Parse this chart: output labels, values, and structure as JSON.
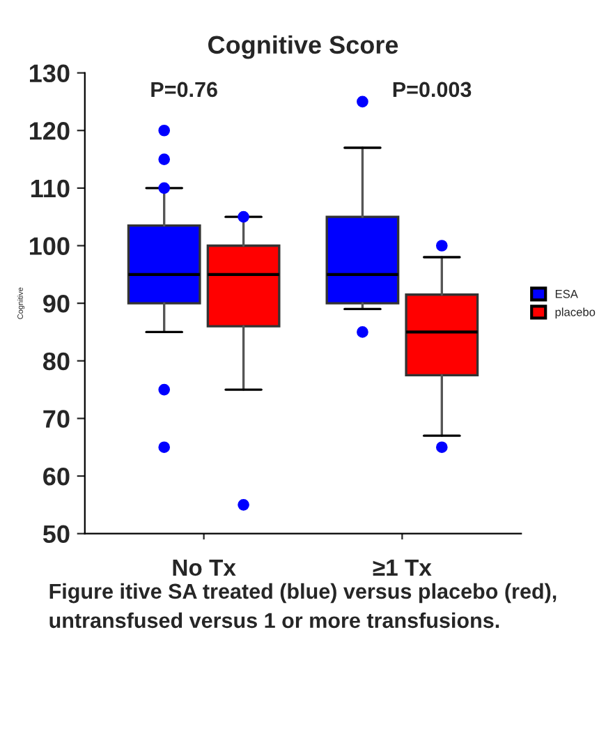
{
  "chart_data": {
    "type": "box",
    "title": "Cognitive Score",
    "ylabel": "Cognitive",
    "categories": [
      "No Tx",
      "≥1 Tx"
    ],
    "series": [
      {
        "name": "ESA",
        "color": "#0000ff",
        "boxes": [
          {
            "low": 85,
            "q1": 90,
            "median": 95,
            "q3": 103.5,
            "high": 110,
            "outliers": [
              120,
              115,
              110,
              75,
              65
            ]
          },
          {
            "low": 89,
            "q1": 90,
            "median": 95,
            "q3": 105,
            "high": 117,
            "outliers": [
              125,
              85
            ]
          }
        ]
      },
      {
        "name": "placebo",
        "color": "#ff0000",
        "boxes": [
          {
            "low": 75,
            "q1": 86,
            "median": 95,
            "q3": 100,
            "high": 105,
            "outliers": [
              105,
              55
            ]
          },
          {
            "low": 67,
            "q1": 77.5,
            "median": 85,
            "q3": 91.5,
            "high": 98,
            "outliers": [
              100,
              65
            ]
          }
        ]
      }
    ],
    "ylim": [
      50,
      130
    ],
    "yticks": [
      50,
      60,
      70,
      80,
      90,
      100,
      110,
      120,
      130
    ],
    "grid": false,
    "legend": "right",
    "annotations": [
      "P=0.76",
      "P=0.003",
      "Figure itive SA treated (blue) versus placebo (red), untransfused versus 1 or more transfusions."
    ]
  }
}
